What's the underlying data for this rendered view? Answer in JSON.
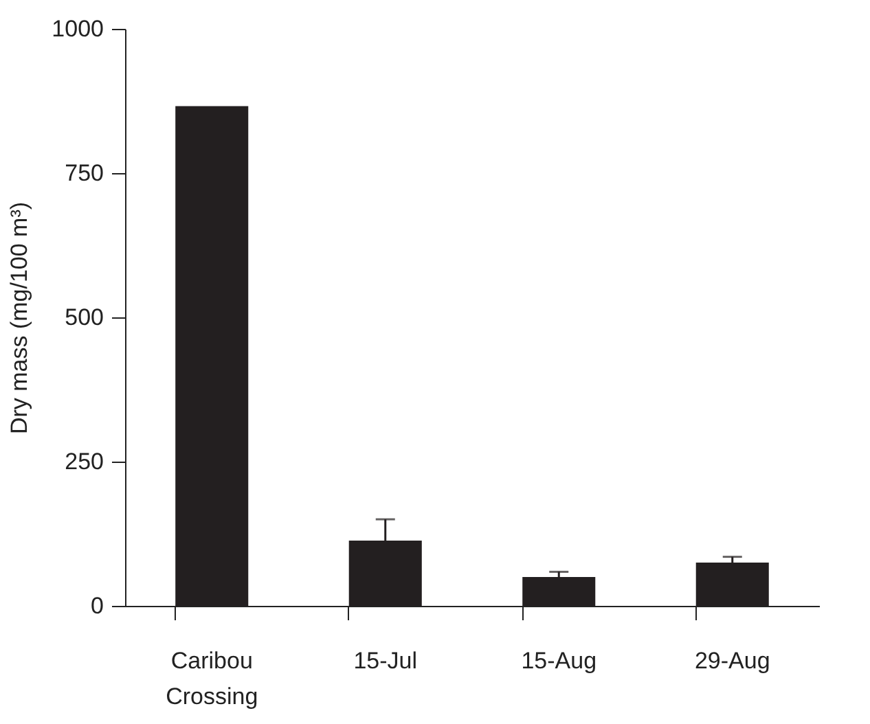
{
  "chart_data": {
    "type": "bar",
    "ylabel": "Dry mass (mg/100 m³)",
    "categories": [
      "Caribou Crossing",
      "15-Jul",
      "15-Aug",
      "29-Aug"
    ],
    "values": [
      866,
      113,
      50,
      75
    ],
    "errors": [
      null,
      [
        113,
        150
      ],
      [
        50,
        59
      ],
      [
        75,
        85
      ]
    ],
    "color": "#231f20",
    "ylim": [
      0,
      1000
    ],
    "yticks": [
      0,
      250,
      500,
      750,
      1000
    ],
    "grid": false
  }
}
